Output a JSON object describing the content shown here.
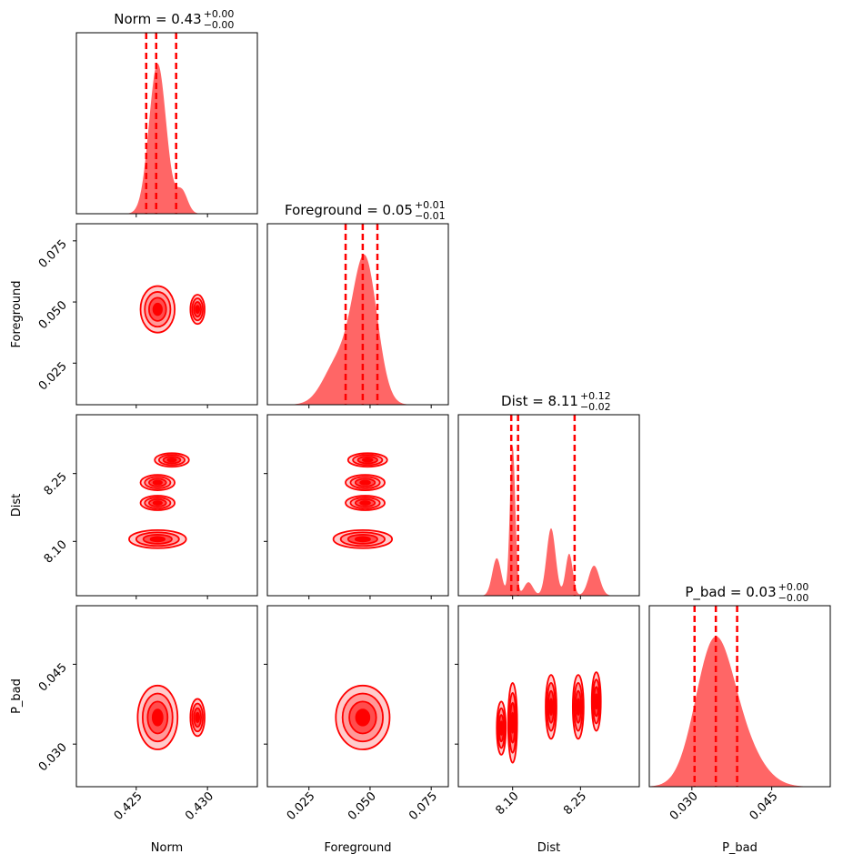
{
  "chart_data": {
    "type": "corner",
    "colors": {
      "main": "#ff0000",
      "hist_fill": "#ff6666",
      "contour_fill_light": "#ffcccc",
      "contour_fill_mid": "#ff9999",
      "contour_fill_dark": "#ff4d4d"
    },
    "parameters": [
      {
        "name": "Norm",
        "value": "0.43",
        "upper": "+0.00",
        "lower": "−0.00",
        "range": [
          0.4208,
          0.4335
        ],
        "ticks": [
          0.425,
          0.43
        ],
        "tick_labels": [
          "0.425",
          "0.430"
        ],
        "quantiles": [
          0.4257,
          0.4264,
          0.4278
        ]
      },
      {
        "name": "Foreground",
        "value": "0.05",
        "upper": "+0.01",
        "lower": "−0.01",
        "range": [
          0.008,
          0.082
        ],
        "ticks": [
          0.025,
          0.05,
          0.075
        ],
        "tick_labels": [
          "0.025",
          "0.050",
          "0.075"
        ],
        "quantiles": [
          0.04,
          0.047,
          0.053
        ]
      },
      {
        "name": "Dist",
        "value": "8.11",
        "upper": "+0.12",
        "lower": "−0.02",
        "range": [
          7.98,
          8.38
        ],
        "ticks": [
          8.1,
          8.25
        ],
        "tick_labels": [
          "8.10",
          "8.25"
        ],
        "quantiles": [
          8.097,
          8.112,
          8.237
        ]
      },
      {
        "name": "P_bad",
        "value": "0.03",
        "upper": "+0.00",
        "lower": "−0.00",
        "range": [
          0.022,
          0.056
        ],
        "ticks": [
          0.03,
          0.045
        ],
        "tick_labels": [
          "0.030",
          "0.045"
        ],
        "quantiles": [
          0.0305,
          0.0345,
          0.0385
        ]
      }
    ],
    "marginal_peaks": [
      [
        {
          "mu": 0.4265,
          "sigma": 0.0006,
          "amp": 1.0
        },
        {
          "mu": 0.4282,
          "sigma": 0.0004,
          "amp": 0.15
        }
      ],
      [
        {
          "mu": 0.048,
          "sigma": 0.005,
          "amp": 1.0
        },
        {
          "mu": 0.037,
          "sigma": 0.006,
          "amp": 0.3
        }
      ],
      [
        {
          "mu": 8.1,
          "sigma": 0.006,
          "amp": 1.0
        },
        {
          "mu": 8.065,
          "sigma": 0.01,
          "amp": 0.25
        },
        {
          "mu": 8.135,
          "sigma": 0.01,
          "amp": 0.09
        },
        {
          "mu": 8.185,
          "sigma": 0.01,
          "amp": 0.45
        },
        {
          "mu": 8.225,
          "sigma": 0.008,
          "amp": 0.28
        },
        {
          "mu": 8.28,
          "sigma": 0.012,
          "amp": 0.2
        }
      ],
      [
        {
          "mu": 0.034,
          "sigma": 0.0035,
          "amp": 1.0
        },
        {
          "mu": 0.039,
          "sigma": 0.004,
          "amp": 0.3
        }
      ]
    ],
    "contour_blobs": [
      {
        "row": 1,
        "col": 0,
        "x": 0.4265,
        "y": 0.047,
        "rx": 0.0012,
        "ry": 0.0095
      },
      {
        "row": 1,
        "col": 0,
        "x": 0.4293,
        "y": 0.047,
        "rx": 0.0005,
        "ry": 0.006
      },
      {
        "row": 2,
        "col": 0,
        "x": 0.4265,
        "y": 8.105,
        "rx": 0.002,
        "ry": 0.02
      },
      {
        "row": 2,
        "col": 0,
        "x": 0.4265,
        "y": 8.185,
        "rx": 0.0012,
        "ry": 0.016
      },
      {
        "row": 2,
        "col": 0,
        "x": 0.4265,
        "y": 8.23,
        "rx": 0.0012,
        "ry": 0.017
      },
      {
        "row": 2,
        "col": 0,
        "x": 0.4275,
        "y": 8.28,
        "rx": 0.0012,
        "ry": 0.015
      },
      {
        "row": 2,
        "col": 1,
        "x": 0.047,
        "y": 8.105,
        "rx": 0.012,
        "ry": 0.02
      },
      {
        "row": 2,
        "col": 1,
        "x": 0.048,
        "y": 8.185,
        "rx": 0.008,
        "ry": 0.016
      },
      {
        "row": 2,
        "col": 1,
        "x": 0.048,
        "y": 8.23,
        "rx": 0.008,
        "ry": 0.017
      },
      {
        "row": 2,
        "col": 1,
        "x": 0.049,
        "y": 8.28,
        "rx": 0.008,
        "ry": 0.015
      },
      {
        "row": 3,
        "col": 0,
        "x": 0.4265,
        "y": 0.035,
        "rx": 0.0014,
        "ry": 0.006
      },
      {
        "row": 3,
        "col": 0,
        "x": 0.4293,
        "y": 0.035,
        "rx": 0.0005,
        "ry": 0.0035
      },
      {
        "row": 3,
        "col": 1,
        "x": 0.047,
        "y": 0.035,
        "rx": 0.011,
        "ry": 0.006
      },
      {
        "row": 3,
        "col": 2,
        "x": 8.1,
        "y": 0.034,
        "rx": 0.01,
        "ry": 0.0075
      },
      {
        "row": 3,
        "col": 2,
        "x": 8.075,
        "y": 0.033,
        "rx": 0.01,
        "ry": 0.005
      },
      {
        "row": 3,
        "col": 2,
        "x": 8.185,
        "y": 0.037,
        "rx": 0.012,
        "ry": 0.006
      },
      {
        "row": 3,
        "col": 2,
        "x": 8.245,
        "y": 0.037,
        "rx": 0.012,
        "ry": 0.006
      },
      {
        "row": 3,
        "col": 2,
        "x": 8.285,
        "y": 0.038,
        "rx": 0.01,
        "ry": 0.0055
      }
    ],
    "contour_levels": [
      1.0,
      0.75,
      0.5,
      0.25
    ]
  }
}
